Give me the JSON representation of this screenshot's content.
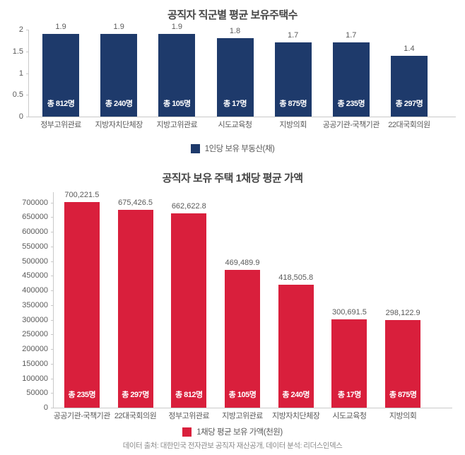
{
  "page": {
    "background_color": "#ffffff"
  },
  "chart_data": [
    {
      "type": "bar",
      "title": "공직자 직군별 평균 보유주택수",
      "categories": [
        "정부고위관료",
        "지방자치단체장",
        "지방고위관료",
        "시도교육청",
        "지방의회",
        "공공기관-국책기관",
        "22대국회의원"
      ],
      "values": [
        1.9,
        1.9,
        1.9,
        1.8,
        1.7,
        1.7,
        1.4
      ],
      "value_labels": [
        "1.9",
        "1.9",
        "1.9",
        "1.8",
        "1.7",
        "1.7",
        "1.4"
      ],
      "bar_count_labels": [
        "총 812명",
        "총 240명",
        "총 105명",
        "총 17명",
        "총 875명",
        "총 235명",
        "총 297명"
      ],
      "legend": "1인당 보유 부동산(채)",
      "bar_color": "#1e3a6b",
      "ylabel": "",
      "xlabel": "",
      "ylim": [
        0,
        2
      ],
      "yticks": [
        0,
        0.5,
        1,
        1.5,
        2
      ],
      "ytick_labels": [
        "0",
        "0.5",
        "1",
        "1.5",
        "2"
      ],
      "grid": false,
      "legend_position": "bottom-center"
    },
    {
      "type": "bar",
      "title": "공직자 보유 주택 1채당 평균 가액",
      "categories": [
        "공공기관-국책기관",
        "22대국회의원",
        "정부고위관료",
        "지방고위관료",
        "지방자치단체장",
        "시도교육청",
        "지방의회"
      ],
      "values": [
        700221.5,
        675426.5,
        662622.8,
        469489.9,
        418505.8,
        300691.5,
        298122.9
      ],
      "value_labels": [
        "700,221.5",
        "675,426.5",
        "662,622.8",
        "469,489.9",
        "418,505.8",
        "300,691.5",
        "298,122.9"
      ],
      "bar_count_labels": [
        "총 235명",
        "총 297명",
        "총 812명",
        "총 105명",
        "총 240명",
        "총 17명",
        "총 875명"
      ],
      "legend": "1채당 평균 보유 가액(천원)",
      "bar_color": "#d91f3c",
      "ylabel": "",
      "xlabel": "",
      "ylim": [
        0,
        735000
      ],
      "yticks": [
        0,
        50000,
        100000,
        150000,
        200000,
        250000,
        300000,
        350000,
        400000,
        450000,
        500000,
        550000,
        600000,
        650000,
        700000
      ],
      "ytick_labels": [
        "0",
        "50000",
        "100000",
        "150000",
        "200000",
        "250000",
        "300000",
        "350000",
        "400000",
        "450000",
        "500000",
        "550000",
        "600000",
        "650000",
        "700000"
      ],
      "grid": false,
      "legend_position": "bottom-center"
    }
  ],
  "footer": {
    "text": "데이터 출처: 대한민국 전자관보 공직자 재산공개, 데이터 분석: 리더스인덱스"
  }
}
